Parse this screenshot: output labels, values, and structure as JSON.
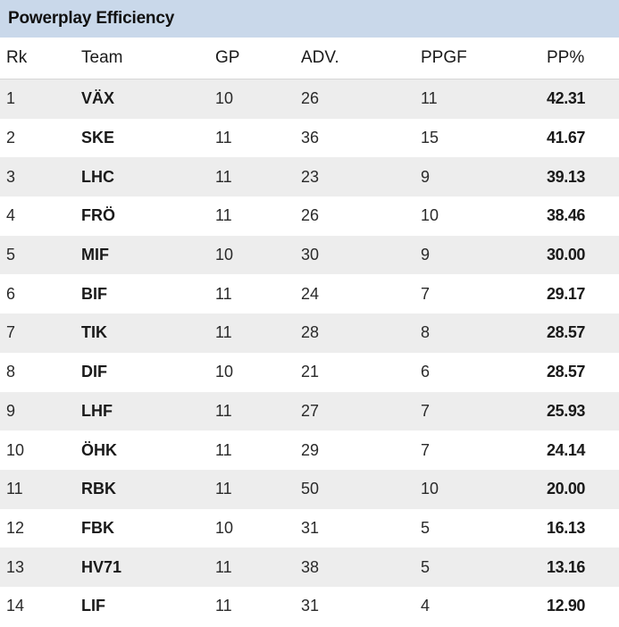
{
  "widget": {
    "title": "Powerplay Efficiency"
  },
  "table": {
    "headers": [
      "Rk",
      "Team",
      "GP",
      "ADV.",
      "PPGF",
      "PP%"
    ],
    "rows": [
      {
        "rk": "1",
        "team": "VÄX",
        "gp": "10",
        "adv": "26",
        "ppgf": "11",
        "pp": "42.31"
      },
      {
        "rk": "2",
        "team": "SKE",
        "gp": "11",
        "adv": "36",
        "ppgf": "15",
        "pp": "41.67"
      },
      {
        "rk": "3",
        "team": "LHC",
        "gp": "11",
        "adv": "23",
        "ppgf": "9",
        "pp": "39.13"
      },
      {
        "rk": "4",
        "team": "FRÖ",
        "gp": "11",
        "adv": "26",
        "ppgf": "10",
        "pp": "38.46"
      },
      {
        "rk": "5",
        "team": "MIF",
        "gp": "10",
        "adv": "30",
        "ppgf": "9",
        "pp": "30.00"
      },
      {
        "rk": "6",
        "team": "BIF",
        "gp": "11",
        "adv": "24",
        "ppgf": "7",
        "pp": "29.17"
      },
      {
        "rk": "7",
        "team": "TIK",
        "gp": "11",
        "adv": "28",
        "ppgf": "8",
        "pp": "28.57"
      },
      {
        "rk": "8",
        "team": "DIF",
        "gp": "10",
        "adv": "21",
        "ppgf": "6",
        "pp": "28.57"
      },
      {
        "rk": "9",
        "team": "LHF",
        "gp": "11",
        "adv": "27",
        "ppgf": "7",
        "pp": "25.93"
      },
      {
        "rk": "10",
        "team": "ÖHK",
        "gp": "11",
        "adv": "29",
        "ppgf": "7",
        "pp": "24.14"
      },
      {
        "rk": "11",
        "team": "RBK",
        "gp": "11",
        "adv": "50",
        "ppgf": "10",
        "pp": "20.00"
      },
      {
        "rk": "12",
        "team": "FBK",
        "gp": "10",
        "adv": "31",
        "ppgf": "5",
        "pp": "16.13"
      },
      {
        "rk": "13",
        "team": "HV71",
        "gp": "11",
        "adv": "38",
        "ppgf": "5",
        "pp": "13.16"
      },
      {
        "rk": "14",
        "team": "LIF",
        "gp": "11",
        "adv": "31",
        "ppgf": "4",
        "pp": "12.90"
      }
    ]
  },
  "colors": {
    "title_bar": "#c9d8ea",
    "stripe": "#ededed"
  }
}
